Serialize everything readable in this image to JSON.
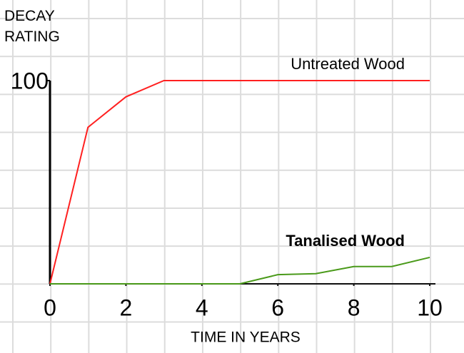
{
  "chart_data": {
    "type": "line",
    "y_label": "DECAY RATING",
    "x_label": "TIME IN YEARS",
    "x": [
      0,
      1,
      2,
      3,
      4,
      5,
      6,
      7,
      8,
      9,
      10
    ],
    "series": [
      {
        "name": "Untreated Wood",
        "color": "#ff2020",
        "bold": false,
        "values": [
          0,
          77,
          92,
          100,
          100,
          100,
          100,
          100,
          100,
          100,
          100
        ]
      },
      {
        "name": "Tanalised Wood",
        "color": "#4a9a1a",
        "bold": true,
        "values": [
          0,
          0,
          0,
          0,
          0,
          0,
          4.5,
          5,
          8.5,
          8.5,
          13
        ]
      }
    ],
    "xlim": [
      0,
      10
    ],
    "xticks": [
      0,
      2,
      4,
      6,
      8,
      10
    ],
    "ylim": [
      0,
      100
    ],
    "yticks": [
      100
    ]
  }
}
